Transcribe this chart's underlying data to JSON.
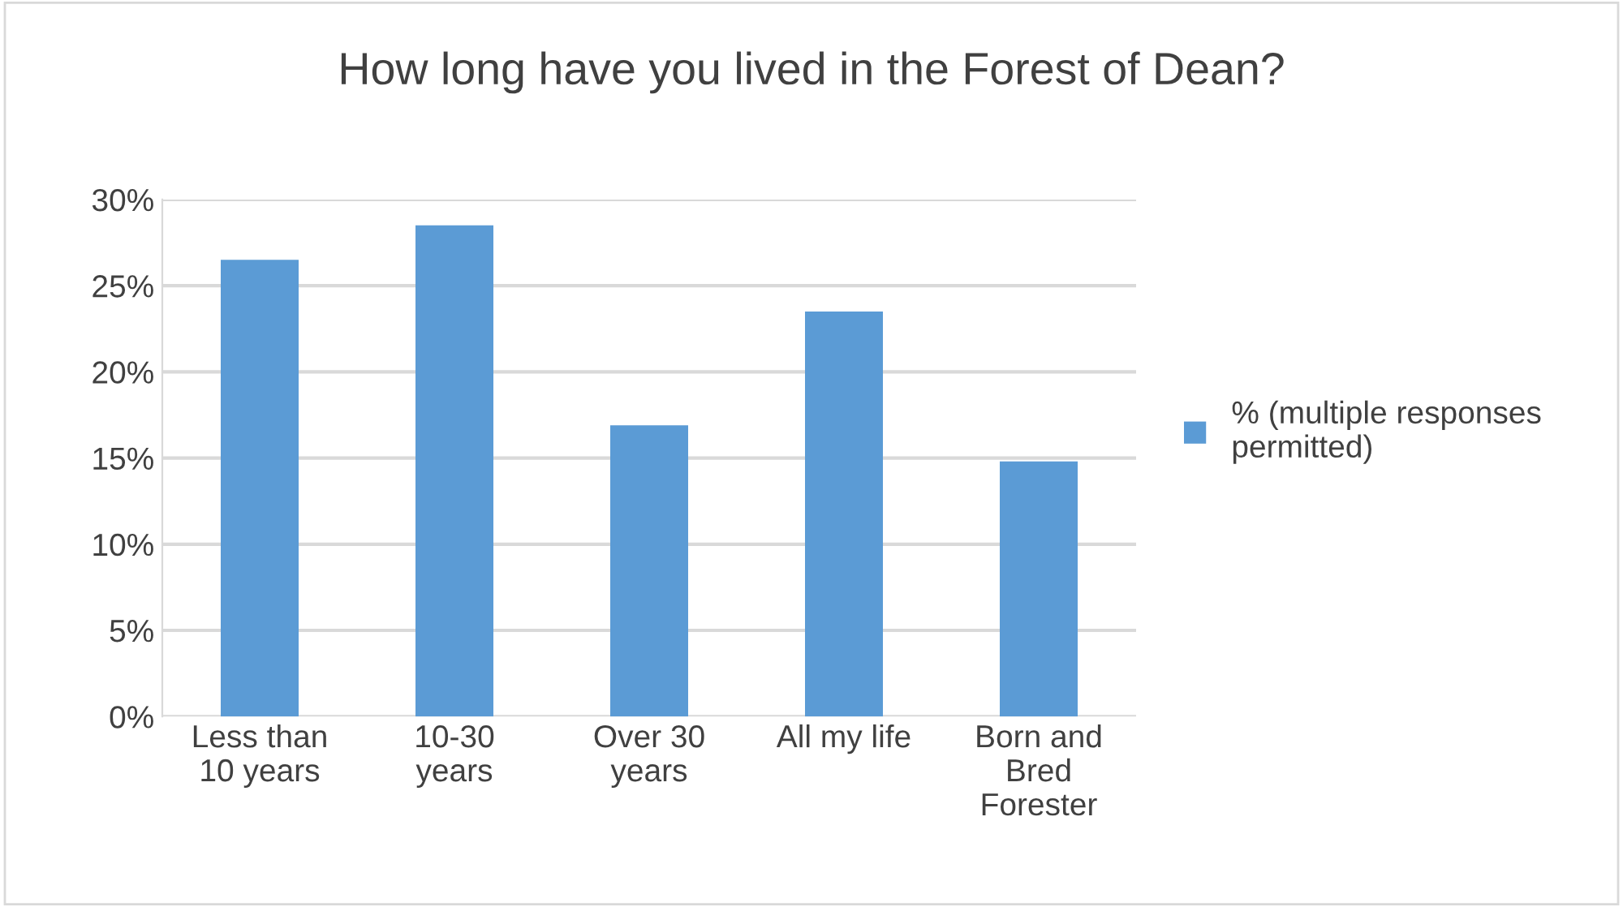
{
  "chart_data": {
    "type": "bar",
    "title": "How long have you lived in the Forest of Dean?",
    "categories": [
      "Less than\n10 years",
      "10-30\nyears",
      "Over 30\nyears",
      "All my life",
      "Born and\nBred\nForester"
    ],
    "series": [
      {
        "name": "% (multiple responses\npermitted)",
        "color": "#5b9bd5",
        "values": [
          26.5,
          28.5,
          16.9,
          23.5,
          14.8
        ]
      }
    ],
    "ylim": [
      0,
      30
    ],
    "yticks": [
      {
        "value": 0,
        "label": "0%"
      },
      {
        "value": 5,
        "label": "5%"
      },
      {
        "value": 10,
        "label": "10%"
      },
      {
        "value": 15,
        "label": "15%"
      },
      {
        "value": 20,
        "label": "20%"
      },
      {
        "value": 25,
        "label": "25%"
      },
      {
        "value": 30,
        "label": "30%"
      }
    ],
    "grid": "y",
    "legend": "right"
  }
}
